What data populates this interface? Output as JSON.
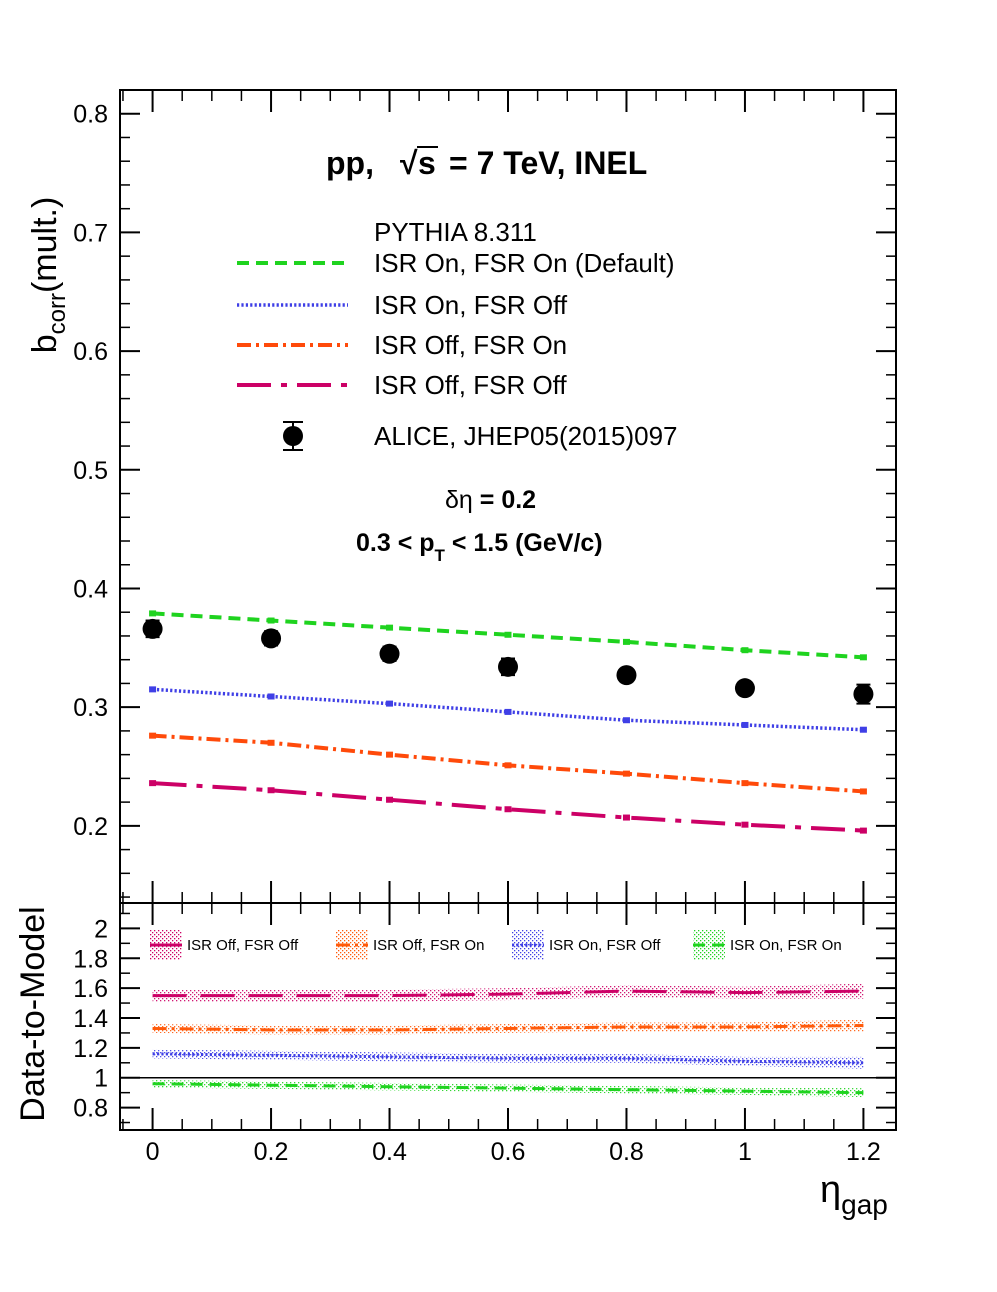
{
  "chart_data": [
    {
      "type": "line",
      "panel": "top",
      "ylabel": "b_corr(mult.)",
      "ylabel_main": "b",
      "ylabel_sub": "corr",
      "ylabel_rest": "(mult.)",
      "xlim": [
        -0.055,
        1.255
      ],
      "ylim": [
        0.135,
        0.82
      ],
      "yticks": [
        0.2,
        0.3,
        0.4,
        0.5,
        0.6,
        0.7,
        0.8
      ],
      "ytick_labels": [
        "0.2",
        "0.3",
        "0.4",
        "0.5",
        "0.6",
        "0.7",
        "0.8"
      ],
      "x": [
        0,
        0.2,
        0.4,
        0.6,
        0.8,
        1.0,
        1.2
      ],
      "header": {
        "system": "pp,",
        "sqrt_symbol": "√",
        "sqrt_arg": "s",
        "energy": "= 7 TeV, INEL",
        "generator": "PYTHIA 8.311",
        "deta_symbol": "δη",
        "deta_value": "= 0.2",
        "pt_left": "0.3 < p",
        "pt_sub": "T",
        "pt_right": "< 1.5 (GeV/c)"
      },
      "series": [
        {
          "name": "ISR On, FSR On (Default)",
          "color": "#1fd31f",
          "dash": "12,7",
          "width": 4,
          "values": [
            0.379,
            0.373,
            0.367,
            0.361,
            0.355,
            0.348,
            0.342
          ]
        },
        {
          "name": "ISR On, FSR Off",
          "color": "#3f3fe6",
          "dash": "2.2,2.2",
          "width": 3.5,
          "values": [
            0.315,
            0.309,
            0.303,
            0.296,
            0.289,
            0.285,
            0.281
          ]
        },
        {
          "name": "ISR Off, FSR On",
          "color": "#ff4a0a",
          "dash": "14,5,3,5",
          "width": 4,
          "values": [
            0.276,
            0.27,
            0.26,
            0.251,
            0.244,
            0.236,
            0.229
          ]
        },
        {
          "name": "ISR Off, FSR Off",
          "color": "#cc0066",
          "dash": "34,10,6,10",
          "width": 4,
          "values": [
            0.236,
            0.23,
            0.222,
            0.214,
            0.207,
            0.201,
            0.196
          ]
        }
      ],
      "data_points": {
        "name": "ALICE, JHEP05(2015)097",
        "color": "#000000",
        "values": [
          0.366,
          0.358,
          0.345,
          0.334,
          0.327,
          0.316,
          0.311
        ],
        "errors": [
          0.007,
          0.006,
          0.006,
          0.007,
          0.005,
          0.005,
          0.008
        ]
      }
    },
    {
      "type": "line",
      "panel": "ratio",
      "ylabel": "Data-to-Model",
      "xlabel": "η_gap",
      "xlabel_main": "η",
      "xlabel_sub": "gap",
      "xlim": [
        -0.055,
        1.255
      ],
      "ylim": [
        0.65,
        2.17
      ],
      "xticks": [
        0,
        0.2,
        0.4,
        0.6,
        0.8,
        1.0,
        1.2
      ],
      "xtick_labels": [
        "0",
        "0.2",
        "0.4",
        "0.6",
        "0.8",
        "1",
        "1.2"
      ],
      "yticks": [
        0.8,
        1.0,
        1.2,
        1.4,
        1.6,
        1.8,
        2.0
      ],
      "ytick_labels": [
        "0.8",
        "1",
        "1.2",
        "1.4",
        "1.6",
        "1.8",
        "2"
      ],
      "reference_line": 1.0,
      "x": [
        0,
        0.2,
        0.4,
        0.6,
        0.8,
        1.0,
        1.2
      ],
      "series": [
        {
          "name": "ISR Off, FSR Off",
          "color": "#cc0066",
          "dash": "34,14",
          "width": 3,
          "values": [
            1.55,
            1.55,
            1.55,
            1.56,
            1.58,
            1.57,
            1.58
          ],
          "errors": [
            0.04,
            0.04,
            0.04,
            0.04,
            0.04,
            0.04,
            0.05
          ]
        },
        {
          "name": "ISR Off, FSR On",
          "color": "#ff5a0a",
          "dash": "14,5,3,5",
          "width": 3,
          "values": [
            1.33,
            1.32,
            1.32,
            1.33,
            1.34,
            1.34,
            1.35
          ],
          "errors": [
            0.03,
            0.03,
            0.03,
            0.03,
            0.03,
            0.03,
            0.04
          ]
        },
        {
          "name": "ISR On, FSR Off",
          "color": "#3f3fe6",
          "dash": "2.2,2.2",
          "width": 3,
          "values": [
            1.16,
            1.15,
            1.14,
            1.13,
            1.13,
            1.11,
            1.1
          ],
          "errors": [
            0.03,
            0.03,
            0.03,
            0.03,
            0.03,
            0.03,
            0.04
          ]
        },
        {
          "name": "ISR On, FSR On",
          "color": "#1fd31f",
          "dash": "12,7",
          "width": 3,
          "values": [
            0.96,
            0.95,
            0.94,
            0.93,
            0.92,
            0.91,
            0.9
          ],
          "errors": [
            0.025,
            0.025,
            0.025,
            0.025,
            0.025,
            0.025,
            0.03
          ]
        }
      ]
    }
  ]
}
